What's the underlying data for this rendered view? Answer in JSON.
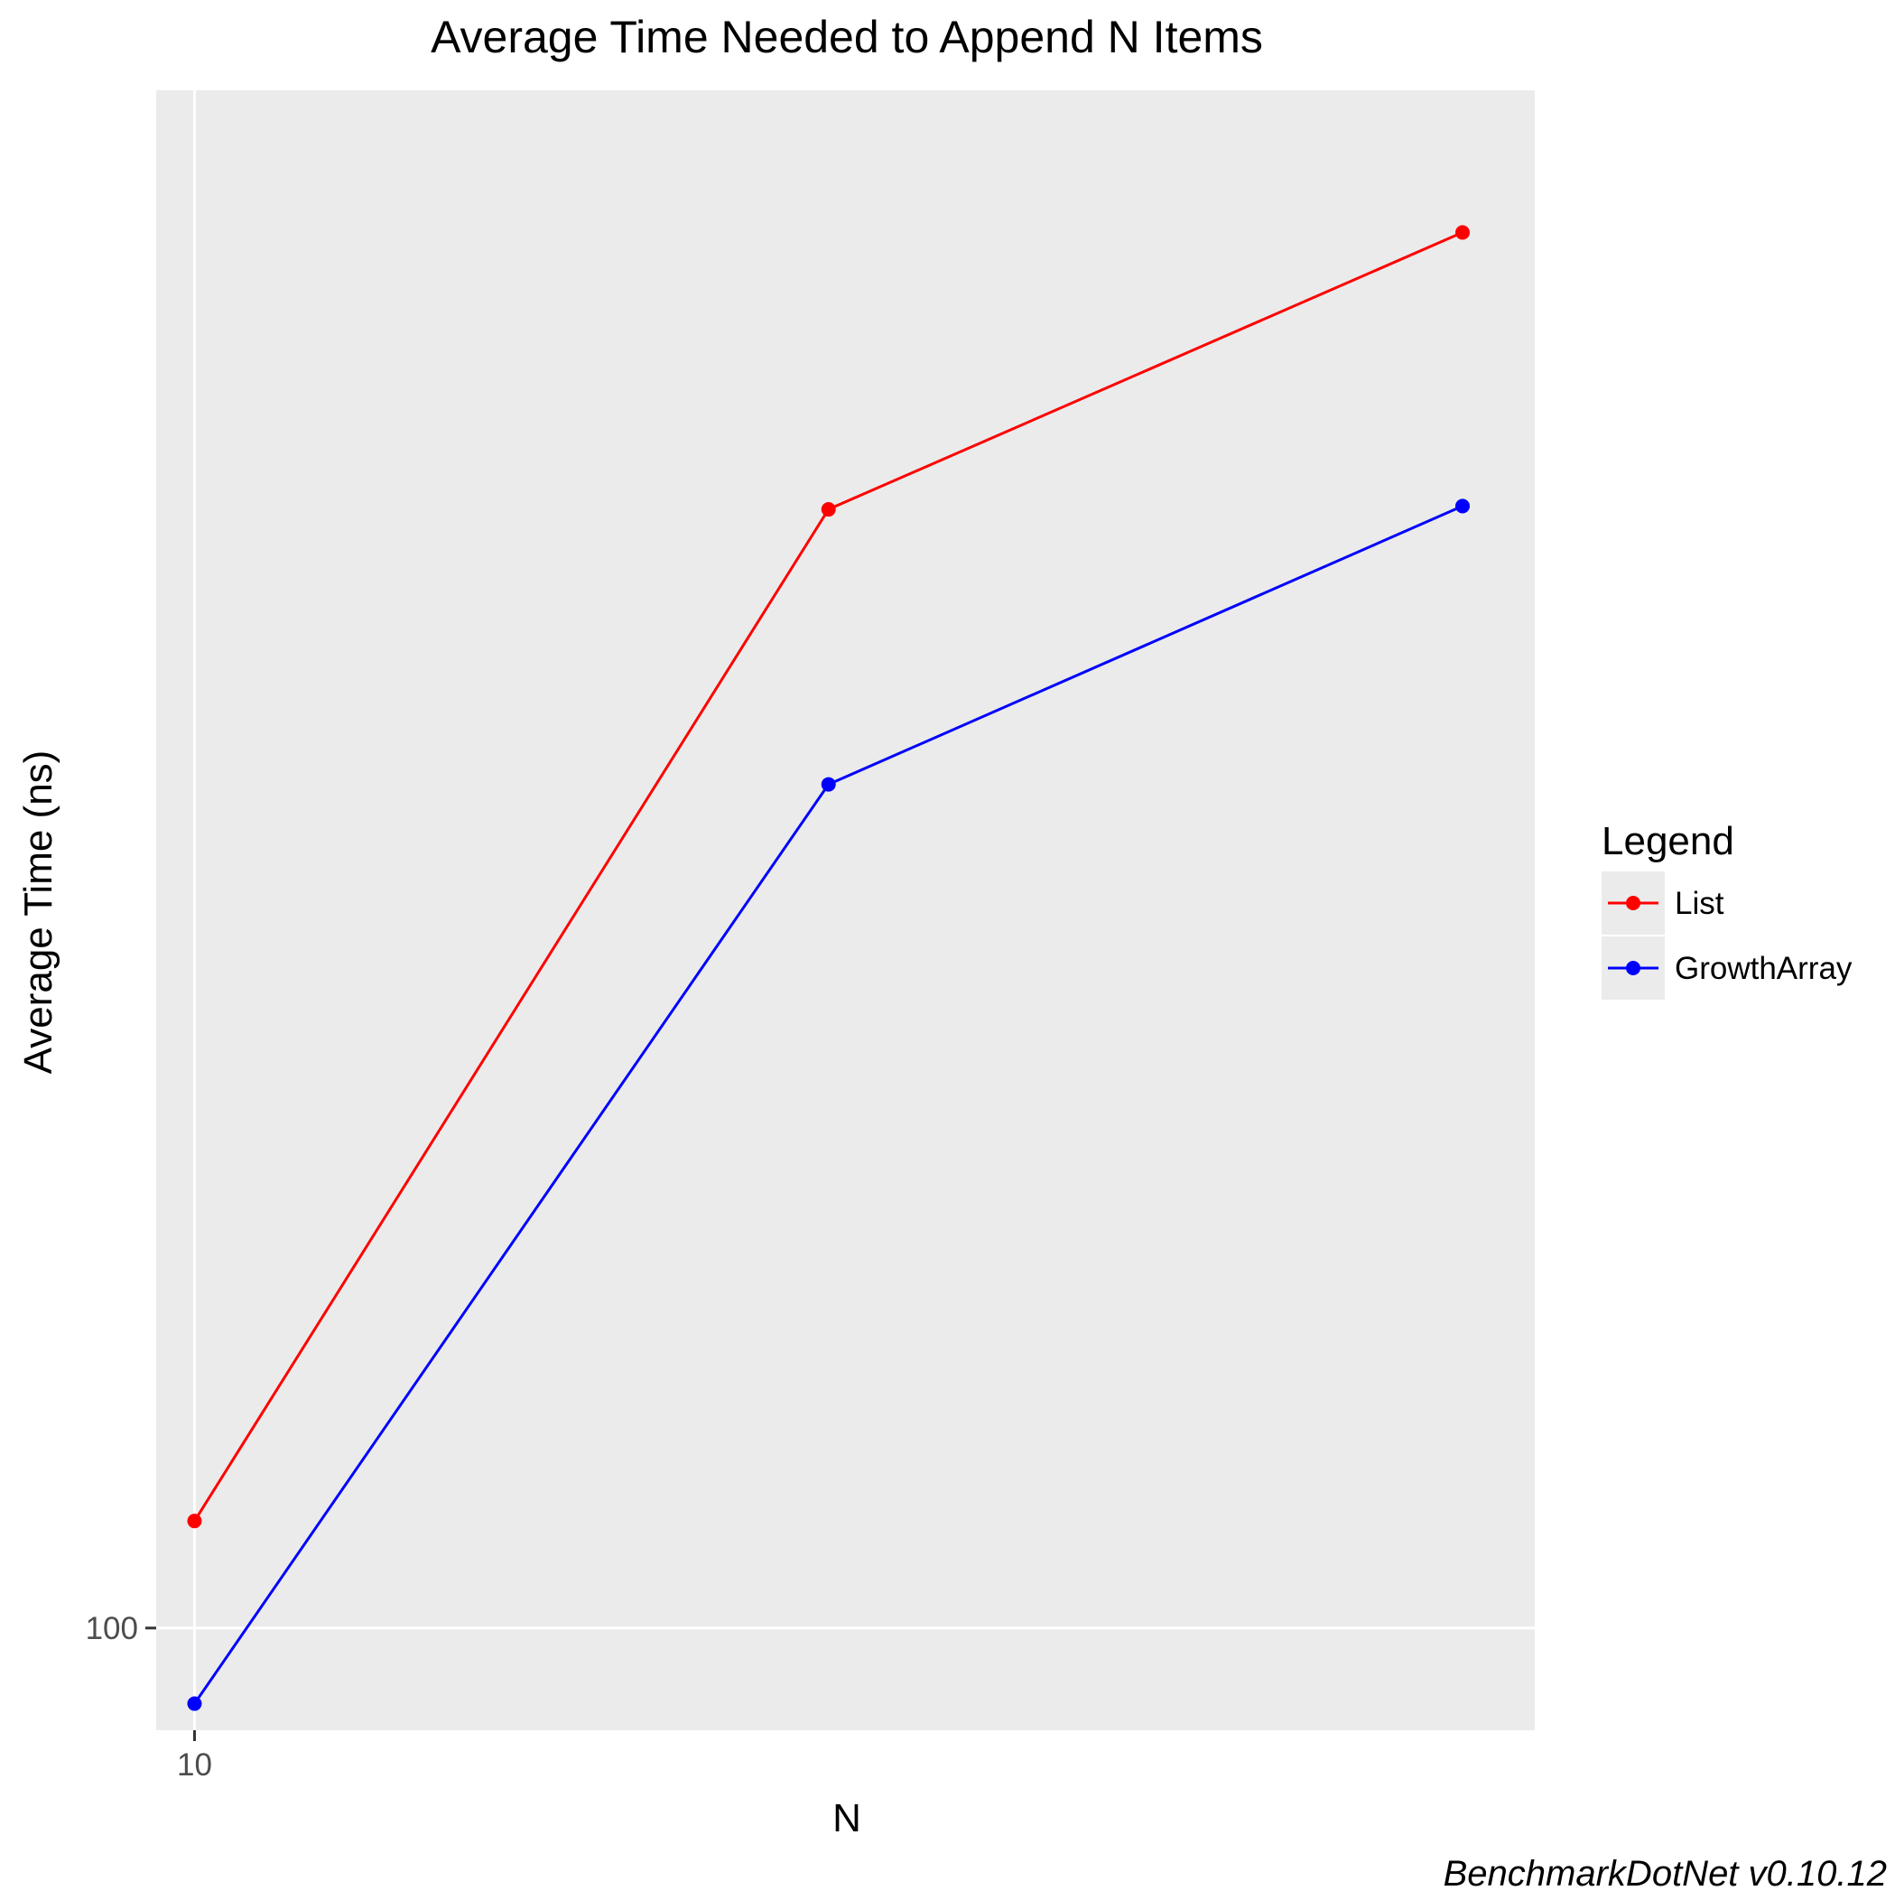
{
  "chart_data": {
    "type": "line",
    "title": "Average Time Needed to Append N Items",
    "xlabel": "N",
    "ylabel": "Average Time (ns)",
    "x_scale": "log10",
    "y_scale": "log10",
    "x_ticks": [
      10
    ],
    "x_tick_labels": [
      "10"
    ],
    "y_ticks": [
      100
    ],
    "y_tick_labels": [
      "100"
    ],
    "xlim": [
      8.7,
      1300
    ],
    "ylim": [
      79,
      3470
    ],
    "grid": true,
    "legend": {
      "title": "Legend",
      "position": "right"
    },
    "series": [
      {
        "name": "List",
        "color": "#ff0000",
        "x": [
          10,
          100,
          1000
        ],
        "y": [
          128,
          1320,
          2500
        ]
      },
      {
        "name": "GrowthArray",
        "color": "#0000ff",
        "x": [
          10,
          100,
          1000
        ],
        "y": [
          84,
          700,
          1330
        ]
      }
    ],
    "caption": "BenchmarkDotNet v0.10.12"
  }
}
